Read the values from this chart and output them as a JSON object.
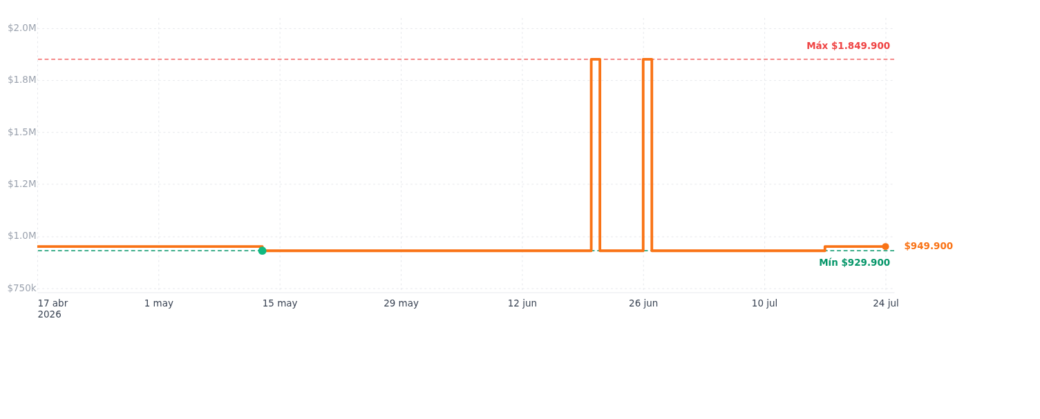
{
  "chart_data": {
    "type": "step",
    "x": [
      "2026-04-17",
      "2026-05-13",
      "2026-06-20",
      "2026-06-21",
      "2026-06-26",
      "2026-06-27",
      "2026-07-17",
      "2026-07-24"
    ],
    "series": [
      {
        "type": "step",
        "color": "#f97316",
        "marker": "none",
        "values": [
          949900,
          929900,
          1849900,
          929900,
          1849900,
          929900,
          949900,
          949900
        ]
      },
      {
        "type": "scatter",
        "color": "#10b981",
        "marker": "circle",
        "x": [
          "2026-05-13"
        ],
        "values": [
          929900
        ]
      },
      {
        "type": "scatter",
        "color": "#f97316",
        "marker": "circle",
        "x": [
          "2026-07-24"
        ],
        "values": [
          949900
        ]
      }
    ],
    "xlim": [
      "2026-04-17",
      "2026-07-25"
    ],
    "xticks": [
      {
        "value": "2026-04-17",
        "label": "17 abr\n2026"
      },
      {
        "value": "2026-05-01",
        "label": "1 may"
      },
      {
        "value": "2026-05-15",
        "label": "15 may"
      },
      {
        "value": "2026-05-29",
        "label": "29 may"
      },
      {
        "value": "2026-06-12",
        "label": "12 jun"
      },
      {
        "value": "2026-06-26",
        "label": "26 jun"
      },
      {
        "value": "2026-07-10",
        "label": "10 jul"
      },
      {
        "value": "2026-07-24",
        "label": "24 jul"
      }
    ],
    "ylim": [
      730000,
      2050000
    ],
    "yticks": [
      {
        "value": 750000,
        "label": "$750k"
      },
      {
        "value": 1000000,
        "label": "$1.0M"
      },
      {
        "value": 1250000,
        "label": "$1.2M"
      },
      {
        "value": 1500000,
        "label": "$1.5M"
      },
      {
        "value": 1750000,
        "label": "$1.8M"
      },
      {
        "value": 2000000,
        "label": "$2.0M"
      }
    ],
    "ref_lines": [
      {
        "axis": "y",
        "value": 1849900,
        "label": "Máx $1.849.900",
        "color": "#ef4444",
        "line_style": "dashed"
      },
      {
        "axis": "y",
        "value": 929900,
        "label": "Mín $929.900",
        "color": "#059669",
        "line_style": "dashed"
      }
    ],
    "annotations": [
      {
        "text": "$949.900",
        "x": "2026-07-24",
        "y": 949900
      }
    ],
    "grid": true,
    "legend": false,
    "line_style": "solid"
  }
}
